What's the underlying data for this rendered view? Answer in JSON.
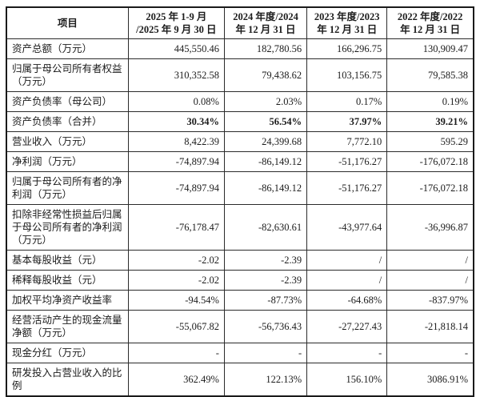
{
  "styles": {
    "background": "#ffffff",
    "border_color": "#1a1a1a",
    "text_color": "#1c1c1c"
  },
  "table": {
    "columns": [
      "项目",
      "2025 年 1-9 月\n/2025 年 9 月 30 日",
      "2024 年度/2024\n年 12 月 31 日",
      "2023 年度/2023\n年 12 月 31 日",
      "2022 年度/2022\n年 12 月 31 日"
    ],
    "rows": [
      {
        "label": "资产总额（万元）",
        "values": [
          "445,550.46",
          "182,780.56",
          "166,296.75",
          "130,909.47"
        ],
        "bold_values": false
      },
      {
        "label": "归属于母公司所有者权益（万元）",
        "values": [
          "310,352.58",
          "79,438.62",
          "103,156.75",
          "79,585.38"
        ],
        "bold_values": false
      },
      {
        "label": "资产负债率（母公司）",
        "values": [
          "0.08%",
          "2.03%",
          "0.17%",
          "0.19%"
        ],
        "bold_values": false
      },
      {
        "label": "资产负债率（合并）",
        "values": [
          "30.34%",
          "56.54%",
          "37.97%",
          "39.21%"
        ],
        "bold_values": true
      },
      {
        "label": "营业收入（万元）",
        "values": [
          "8,422.39",
          "24,399.68",
          "7,772.10",
          "595.29"
        ],
        "bold_values": false
      },
      {
        "label": "净利润（万元）",
        "values": [
          "-74,897.94",
          "-86,149.12",
          "-51,176.27",
          "-176,072.18"
        ],
        "bold_values": false
      },
      {
        "label": "归属于母公司所有者的净利润（万元）",
        "values": [
          "-74,897.94",
          "-86,149.12",
          "-51,176.27",
          "-176,072.18"
        ],
        "bold_values": false
      },
      {
        "label": "扣除非经常性损益后归属于母公司所有者的净利润（万元）",
        "values": [
          "-76,178.47",
          "-82,630.61",
          "-43,977.64",
          "-36,996.87"
        ],
        "bold_values": false
      },
      {
        "label": "基本每股收益（元）",
        "values": [
          "-2.02",
          "-2.39",
          "/",
          "/"
        ],
        "bold_values": false
      },
      {
        "label": "稀释每股收益（元）",
        "values": [
          "-2.02",
          "-2.39",
          "/",
          "/"
        ],
        "bold_values": false
      },
      {
        "label": "加权平均净资产收益率",
        "values": [
          "-94.54%",
          "-87.73%",
          "-64.68%",
          "-837.97%"
        ],
        "bold_values": false
      },
      {
        "label": "经营活动产生的现金流量净额（万元）",
        "values": [
          "-55,067.82",
          "-56,736.43",
          "-27,227.43",
          "-21,818.14"
        ],
        "bold_values": false
      },
      {
        "label": "现金分红（万元）",
        "values": [
          "-",
          "-",
          "-",
          "-"
        ],
        "bold_values": false
      },
      {
        "label": "研发投入占营业收入的比例",
        "values": [
          "362.49%",
          "122.13%",
          "156.10%",
          "3086.91%"
        ],
        "bold_values": false
      }
    ]
  }
}
